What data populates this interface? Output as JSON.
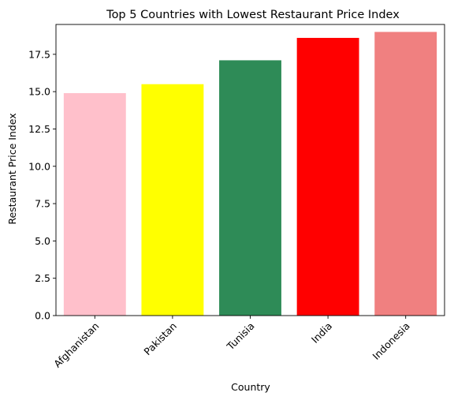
{
  "chart_data": {
    "type": "bar",
    "title": "Top 5 Countries with Lowest Restaurant Price Index",
    "xlabel": "Country",
    "ylabel": "Restaurant Price Index",
    "categories": [
      "Afghanistan",
      "Pakistan",
      "Tunisia",
      "India",
      "Indonesia"
    ],
    "values": [
      14.9,
      15.5,
      17.1,
      18.6,
      19.0
    ],
    "colors": [
      "#ffc0cb",
      "#ffff00",
      "#2e8b57",
      "#ff0000",
      "#f08080"
    ],
    "ylim": [
      0,
      19.5
    ],
    "yticks": [
      0.0,
      2.5,
      5.0,
      7.5,
      10.0,
      12.5,
      15.0,
      17.5
    ],
    "ytick_labels": [
      "0.0",
      "2.5",
      "5.0",
      "7.5",
      "10.0",
      "12.5",
      "15.0",
      "17.5"
    ],
    "grid": false,
    "legend": "none"
  }
}
